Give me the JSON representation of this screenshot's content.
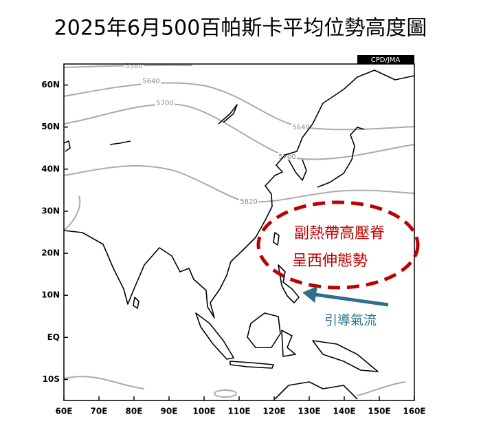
{
  "title": "2025年6月500百帕斯卡平均位勢高度圖",
  "source": "CPD/JMA",
  "map": {
    "xlim": [
      60,
      160
    ],
    "ylim": [
      -15,
      65
    ],
    "xticks": [
      {
        "value": 60,
        "label": "60E"
      },
      {
        "value": 70,
        "label": "70E"
      },
      {
        "value": 80,
        "label": "80E"
      },
      {
        "value": 90,
        "label": "90E"
      },
      {
        "value": 100,
        "label": "100E"
      },
      {
        "value": 110,
        "label": "110E"
      },
      {
        "value": 120,
        "label": "120E"
      },
      {
        "value": 130,
        "label": "130E"
      },
      {
        "value": 140,
        "label": "140E"
      },
      {
        "value": 150,
        "label": "150E"
      },
      {
        "value": 160,
        "label": "160E"
      }
    ],
    "yticks": [
      {
        "value": 60,
        "label": "60N"
      },
      {
        "value": 50,
        "label": "50N"
      },
      {
        "value": 40,
        "label": "40N"
      },
      {
        "value": 30,
        "label": "30N"
      },
      {
        "value": 20,
        "label": "20N"
      },
      {
        "value": 10,
        "label": "10N"
      },
      {
        "value": 0,
        "label": "EQ"
      },
      {
        "value": -10,
        "label": "10S"
      }
    ],
    "contour_labels": [
      5580,
      5640,
      5700,
      5640,
      5700,
      5820
    ]
  },
  "annotations": {
    "ridge_line1": "副熱帶高壓脊",
    "ridge_line2": "呈西伸態勢",
    "flow": "引導氣流"
  }
}
